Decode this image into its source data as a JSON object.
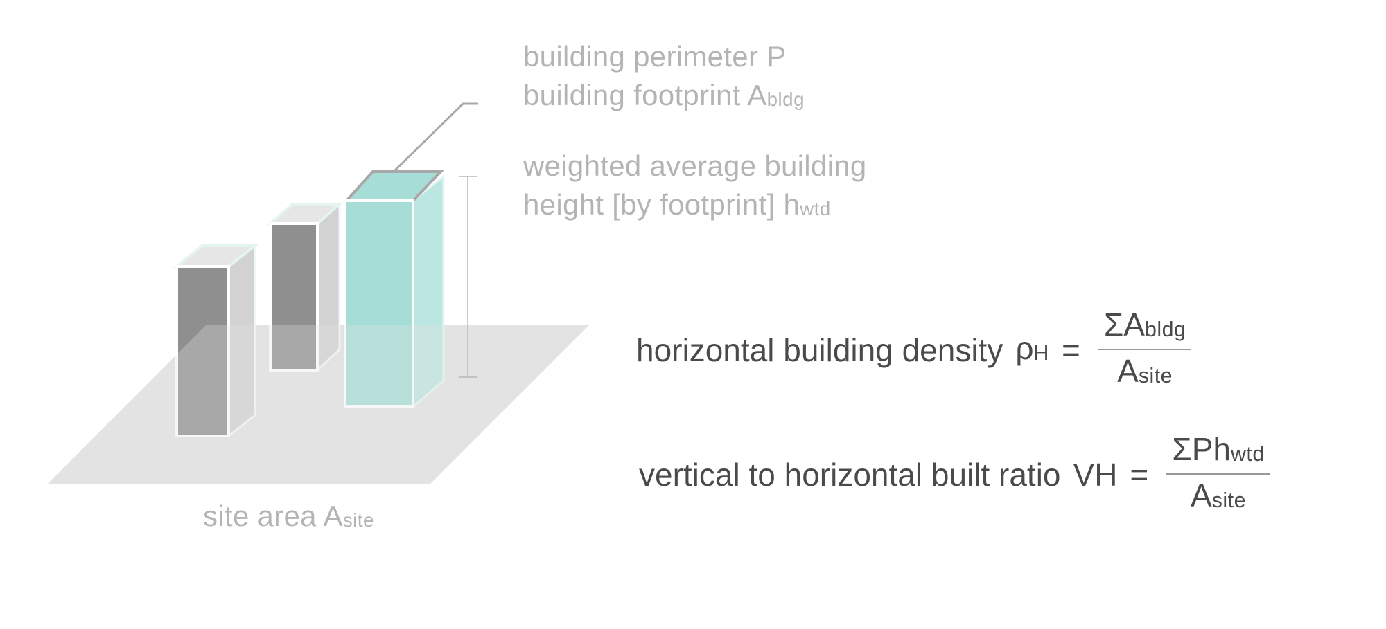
{
  "labels": {
    "perimeter": {
      "text": "building perimeter P"
    },
    "footprint": {
      "text": "building footprint A",
      "sub": "bldg"
    },
    "height_line1": {
      "text": "weighted average building"
    },
    "height_line2": {
      "text": "height [by footprint] h",
      "sub": "wtd"
    },
    "site": {
      "text": "site area A",
      "sub": "site"
    }
  },
  "equations": {
    "density": {
      "name": "horizontal building density",
      "symbol": "ρ",
      "symbol_sub": "H",
      "equals": "=",
      "numerator": "ΣA",
      "numerator_sub": "bldg",
      "denominator": "A",
      "denominator_sub": "site"
    },
    "ratio": {
      "name": "vertical to horizontal built ratio",
      "symbol": "VH",
      "equals": "=",
      "numerator": "ΣPh",
      "numerator_sub": "wtd",
      "denominator": "A",
      "denominator_sub": "site"
    }
  },
  "colors": {
    "site_plane": "#e3e3e3",
    "building_gray_front": "#8f8f8f",
    "building_gray_side": "#d2d2d2",
    "building_gray_top": "#e6e6e6",
    "building_teal_front": "#a6ddd7",
    "building_teal_side": "#bce6e1",
    "outline_teal": "#e6f5f3",
    "leader_line": "#a8a8a8",
    "label_text": "#b4b4b4",
    "equation_text": "#4a4a4a"
  }
}
